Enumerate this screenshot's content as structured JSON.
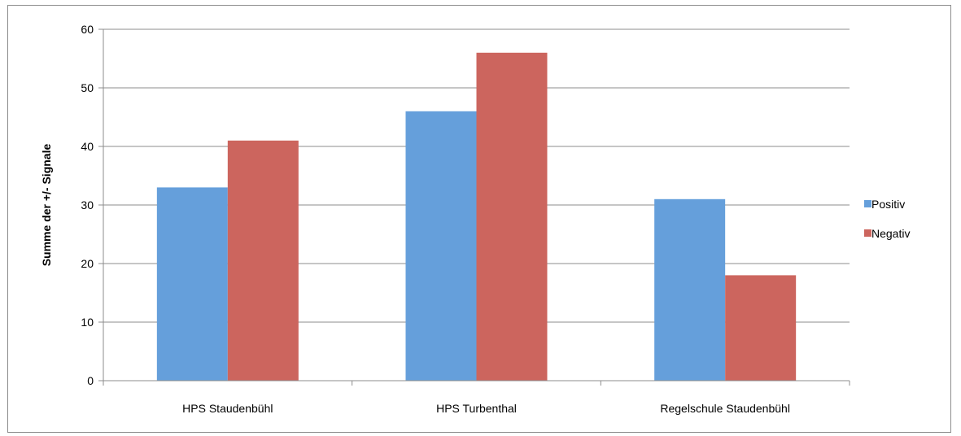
{
  "chart_data": {
    "type": "bar",
    "title": "",
    "xlabel": "",
    "ylabel": "Summe der   +/-  Signale",
    "categories": [
      "HPS Staudenbühl",
      "HPS Turbenthal",
      "Regelschule Staudenbühl"
    ],
    "series": [
      {
        "name": "Positiv",
        "values": [
          33,
          46,
          31
        ],
        "color": "#659fdb"
      },
      {
        "name": "Negativ",
        "values": [
          41,
          56,
          18
        ],
        "color": "#cc655e"
      }
    ],
    "ylim": [
      0,
      60
    ],
    "yticks": [
      0,
      10,
      20,
      30,
      40,
      50,
      60
    ],
    "grid": true,
    "legend_position": "right"
  }
}
